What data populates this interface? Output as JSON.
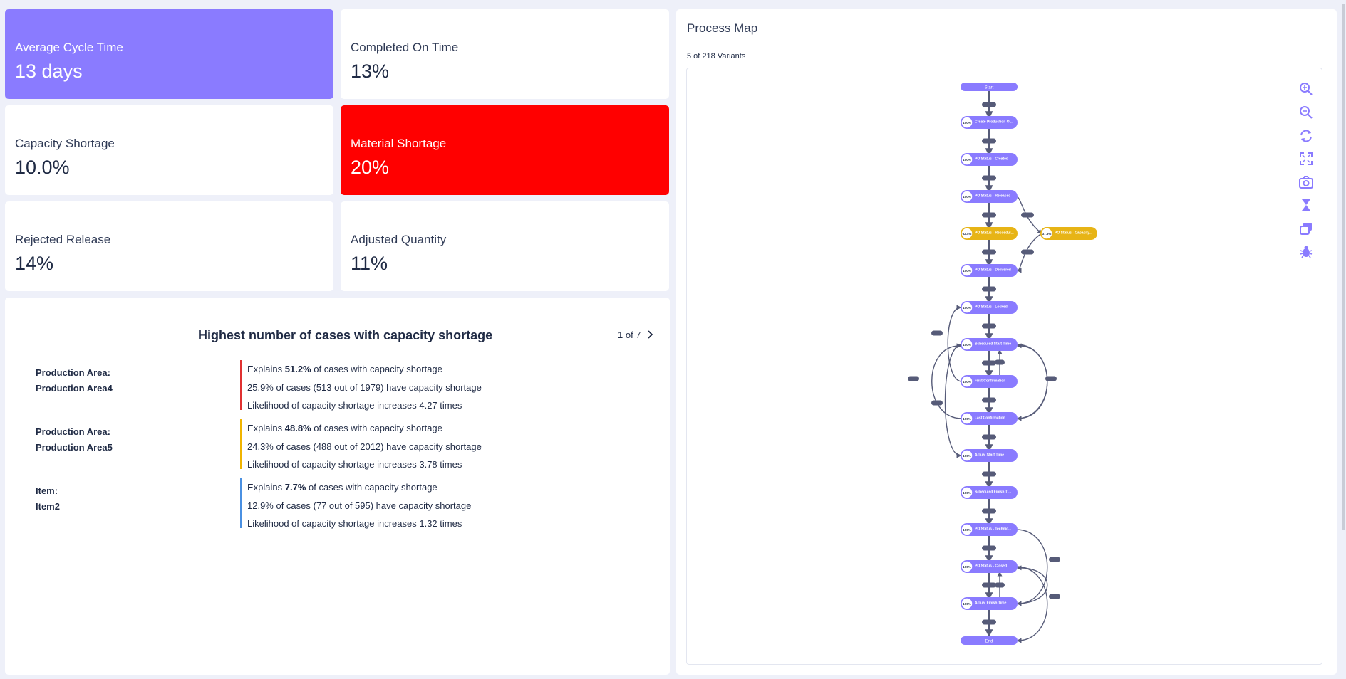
{
  "kpis": [
    {
      "label": "Average Cycle Time",
      "value": "13 days"
    },
    {
      "label": "Completed On Time",
      "value": "13%"
    },
    {
      "label": "Capacity Shortage",
      "value": "10.0%"
    },
    {
      "label": "Material Shortage",
      "value": "20%"
    },
    {
      "label": "Rejected Release",
      "value": "14%"
    },
    {
      "label": "Adjusted Quantity",
      "value": "11%"
    }
  ],
  "insights": {
    "title": "Highest number of cases with capacity shortage",
    "pager": "1 of 7",
    "drivers": [
      {
        "name_line1": "Production Area:",
        "name_line2": "Production Area4",
        "explains_prefix": "Explains ",
        "explains_pct": "51.2%",
        "explains_suffix": " of cases with capacity shortage",
        "line2": "25.9% of cases (513 out of 1979) have capacity shortage",
        "line3": "Likelihood of capacity shortage increases 4.27 times",
        "color": "#e03131"
      },
      {
        "name_line1": "Production Area:",
        "name_line2": "Production Area5",
        "explains_prefix": "Explains ",
        "explains_pct": "48.8%",
        "explains_suffix": " of cases with capacity shortage",
        "line2": "24.3% of cases (488 out of 2012) have capacity shortage",
        "line3": "Likelihood of capacity shortage increases 3.78 times",
        "color": "#f0b400"
      },
      {
        "name_line1": "Item:",
        "name_line2": "Item2",
        "explains_prefix": "Explains ",
        "explains_pct": "7.7%",
        "explains_suffix": " of cases with capacity shortage",
        "line2": "12.9% of cases (77 out of 595) have capacity shortage",
        "line3": "Likelihood of capacity shortage increases 1.32 times",
        "color": "#4a90e2"
      }
    ]
  },
  "process_map": {
    "title": "Process Map",
    "variants": "5 of 218 Variants",
    "nodes": [
      {
        "label": "Start",
        "pct": "",
        "kind": "terminal"
      },
      {
        "label": "Create Production O...",
        "pct": "100%",
        "kind": "main"
      },
      {
        "label": "PO Status - Created",
        "pct": "100%",
        "kind": "main"
      },
      {
        "label": "PO Status - Released",
        "pct": "100%",
        "kind": "main"
      },
      {
        "label": "PO Status - Rescedul...",
        "pct": "62.4%",
        "kind": "warn"
      },
      {
        "label": "PO Status - Capacity...",
        "pct": "37.6%",
        "kind": "warn"
      },
      {
        "label": "PO Status - Delivered",
        "pct": "100%",
        "kind": "main"
      },
      {
        "label": "PO Status - Locked",
        "pct": "100%",
        "kind": "main"
      },
      {
        "label": "Scheduled Start Time",
        "pct": "100%",
        "kind": "main"
      },
      {
        "label": "First Confirmation",
        "pct": "100%",
        "kind": "main"
      },
      {
        "label": "Last Confirmation",
        "pct": "100%",
        "kind": "main"
      },
      {
        "label": "Actual Start Time",
        "pct": "100%",
        "kind": "main"
      },
      {
        "label": "Scheduled Finish Ti...",
        "pct": "100%",
        "kind": "main"
      },
      {
        "label": "PO Status - Technic...",
        "pct": "100%",
        "kind": "main"
      },
      {
        "label": "PO Status - Closed",
        "pct": "100%",
        "kind": "main"
      },
      {
        "label": "Actual Finish Time",
        "pct": "100%",
        "kind": "main"
      },
      {
        "label": "End",
        "pct": "",
        "kind": "terminal"
      }
    ],
    "tools": [
      "zoom-in-icon",
      "zoom-out-icon",
      "refresh-icon",
      "fullscreen-icon",
      "camera-icon",
      "hourglass-icon",
      "layers-icon",
      "bug-icon"
    ]
  },
  "colors": {
    "accent": "#8a7bff",
    "danger": "#ff0000",
    "warn": "#e7b416",
    "edge": "#565b78"
  }
}
